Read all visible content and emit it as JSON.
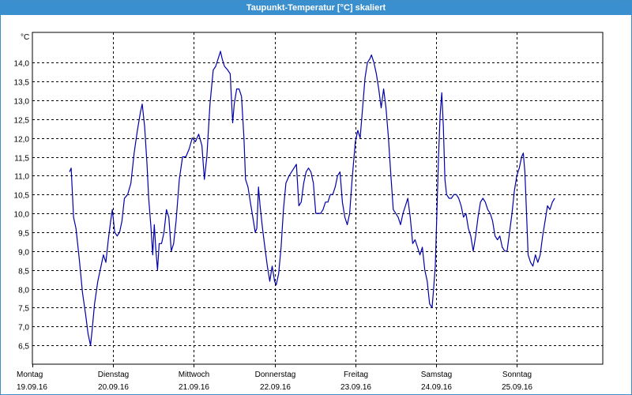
{
  "window": {
    "title": "Taupunkt-Temperatur [°C] skaliert"
  },
  "chart_data": {
    "type": "line",
    "title": "Taupunkt-Temperatur [°C] skaliert",
    "ylabel": "°C",
    "xlabel": "",
    "ylim": [
      6.0,
      14.8
    ],
    "xlim": [
      0,
      7.07
    ],
    "y_ticks": [
      "6,5",
      "7,0",
      "7,5",
      "8,0",
      "8,5",
      "9,0",
      "9,5",
      "10,0",
      "10,5",
      "11,0",
      "11,5",
      "12,0",
      "12,5",
      "13,0",
      "13,5",
      "14,0"
    ],
    "y_tick_values": [
      6.5,
      7.0,
      7.5,
      8.0,
      8.5,
      9.0,
      9.5,
      10.0,
      10.5,
      11.0,
      11.5,
      12.0,
      12.5,
      13.0,
      13.5,
      14.0
    ],
    "x_ticks": [
      {
        "day": "Montag",
        "date": "19.09.16",
        "x": 0
      },
      {
        "day": "Dienstag",
        "date": "20.09.16",
        "x": 1
      },
      {
        "day": "Mittwoch",
        "date": "21.09.16",
        "x": 2
      },
      {
        "day": "Donnerstag",
        "date": "22.09.16",
        "x": 3
      },
      {
        "day": "Freitag",
        "date": "23.09.16",
        "x": 4
      },
      {
        "day": "Samstag",
        "date": "24.09.16",
        "x": 5
      },
      {
        "day": "Sonntag",
        "date": "25.09.16",
        "x": 6
      }
    ],
    "grid": true,
    "colors": {
      "series": "#0000aa",
      "grid": "#000000",
      "title_bar": "#3a8fcf"
    },
    "series": [
      {
        "values": [
          [
            0.46,
            11.1
          ],
          [
            0.48,
            11.2
          ],
          [
            0.51,
            9.9
          ],
          [
            0.54,
            9.6
          ],
          [
            0.58,
            8.8
          ],
          [
            0.62,
            7.9
          ],
          [
            0.66,
            7.3
          ],
          [
            0.69,
            6.8
          ],
          [
            0.72,
            6.5
          ],
          [
            0.74,
            6.9
          ],
          [
            0.77,
            7.6
          ],
          [
            0.81,
            8.2
          ],
          [
            0.85,
            8.6
          ],
          [
            0.88,
            8.9
          ],
          [
            0.91,
            8.7
          ],
          [
            0.94,
            9.3
          ],
          [
            0.97,
            9.8
          ],
          [
            0.99,
            10.1
          ],
          [
            1.02,
            9.5
          ],
          [
            1.05,
            9.4
          ],
          [
            1.08,
            9.5
          ],
          [
            1.11,
            9.8
          ],
          [
            1.14,
            10.4
          ],
          [
            1.18,
            10.5
          ],
          [
            1.22,
            10.8
          ],
          [
            1.26,
            11.6
          ],
          [
            1.3,
            12.2
          ],
          [
            1.34,
            12.7
          ],
          [
            1.36,
            12.9
          ],
          [
            1.39,
            12.3
          ],
          [
            1.42,
            11.3
          ],
          [
            1.44,
            10.4
          ],
          [
            1.47,
            9.6
          ],
          [
            1.49,
            8.9
          ],
          [
            1.51,
            9.7
          ],
          [
            1.53,
            9.0
          ],
          [
            1.55,
            8.5
          ],
          [
            1.57,
            9.2
          ],
          [
            1.6,
            9.2
          ],
          [
            1.63,
            9.5
          ],
          [
            1.66,
            10.1
          ],
          [
            1.69,
            9.9
          ],
          [
            1.72,
            9.0
          ],
          [
            1.75,
            9.2
          ],
          [
            1.78,
            9.8
          ],
          [
            1.82,
            10.9
          ],
          [
            1.86,
            11.5
          ],
          [
            1.9,
            11.5
          ],
          [
            1.94,
            11.7
          ],
          [
            1.98,
            12.0
          ],
          [
            2.02,
            11.9
          ],
          [
            2.06,
            12.1
          ],
          [
            2.1,
            11.8
          ],
          [
            2.13,
            10.9
          ],
          [
            2.16,
            11.5
          ],
          [
            2.2,
            12.9
          ],
          [
            2.24,
            13.8
          ],
          [
            2.27,
            13.9
          ],
          [
            2.3,
            14.1
          ],
          [
            2.33,
            14.3
          ],
          [
            2.35,
            14.1
          ],
          [
            2.38,
            13.9
          ],
          [
            2.42,
            13.8
          ],
          [
            2.45,
            13.7
          ],
          [
            2.48,
            12.4
          ],
          [
            2.5,
            12.9
          ],
          [
            2.53,
            13.3
          ],
          [
            2.56,
            13.3
          ],
          [
            2.59,
            13.1
          ],
          [
            2.62,
            12.0
          ],
          [
            2.64,
            10.9
          ],
          [
            2.67,
            10.7
          ],
          [
            2.7,
            10.3
          ],
          [
            2.73,
            9.9
          ],
          [
            2.76,
            9.5
          ],
          [
            2.78,
            9.6
          ],
          [
            2.8,
            10.7
          ],
          [
            2.82,
            10.2
          ],
          [
            2.85,
            9.6
          ],
          [
            2.88,
            9.1
          ],
          [
            2.91,
            8.6
          ],
          [
            2.94,
            8.2
          ],
          [
            2.97,
            8.6
          ],
          [
            3.0,
            8.2
          ],
          [
            3.02,
            8.1
          ],
          [
            3.05,
            8.4
          ],
          [
            3.08,
            9.1
          ],
          [
            3.11,
            10.1
          ],
          [
            3.14,
            10.8
          ],
          [
            3.18,
            11.0
          ],
          [
            3.21,
            11.1
          ],
          [
            3.24,
            11.2
          ],
          [
            3.27,
            11.3
          ],
          [
            3.3,
            10.2
          ],
          [
            3.33,
            10.3
          ],
          [
            3.36,
            10.8
          ],
          [
            3.39,
            11.1
          ],
          [
            3.42,
            11.2
          ],
          [
            3.45,
            11.1
          ],
          [
            3.48,
            10.8
          ],
          [
            3.51,
            10.0
          ],
          [
            3.54,
            10.0
          ],
          [
            3.57,
            10.0
          ],
          [
            3.6,
            10.1
          ],
          [
            3.63,
            10.3
          ],
          [
            3.66,
            10.3
          ],
          [
            3.69,
            10.5
          ],
          [
            3.72,
            10.5
          ],
          [
            3.75,
            10.7
          ],
          [
            3.78,
            11.0
          ],
          [
            3.81,
            11.1
          ],
          [
            3.84,
            10.3
          ],
          [
            3.87,
            9.9
          ],
          [
            3.9,
            9.7
          ],
          [
            3.93,
            10.0
          ],
          [
            3.96,
            10.9
          ],
          [
            4.0,
            11.9
          ],
          [
            4.03,
            12.2
          ],
          [
            4.06,
            12.0
          ],
          [
            4.09,
            12.8
          ],
          [
            4.12,
            13.6
          ],
          [
            4.15,
            14.0
          ],
          [
            4.18,
            14.1
          ],
          [
            4.2,
            14.2
          ],
          [
            4.23,
            14.0
          ],
          [
            4.26,
            13.7
          ],
          [
            4.29,
            13.3
          ],
          [
            4.32,
            12.8
          ],
          [
            4.35,
            13.3
          ],
          [
            4.38,
            12.8
          ],
          [
            4.41,
            12.0
          ],
          [
            4.44,
            11.0
          ],
          [
            4.47,
            10.1
          ],
          [
            4.5,
            10.0
          ],
          [
            4.53,
            9.9
          ],
          [
            4.56,
            9.7
          ],
          [
            4.59,
            10.0
          ],
          [
            4.62,
            10.2
          ],
          [
            4.65,
            10.4
          ],
          [
            4.68,
            9.9
          ],
          [
            4.71,
            9.2
          ],
          [
            4.74,
            9.3
          ],
          [
            4.77,
            9.1
          ],
          [
            4.8,
            8.9
          ],
          [
            4.83,
            9.1
          ],
          [
            4.86,
            8.5
          ],
          [
            4.89,
            8.2
          ],
          [
            4.92,
            7.6
          ],
          [
            4.95,
            7.5
          ],
          [
            4.97,
            8.0
          ],
          [
            4.99,
            8.6
          ],
          [
            5.01,
            10.0
          ],
          [
            5.03,
            11.5
          ],
          [
            5.05,
            12.6
          ],
          [
            5.07,
            13.2
          ],
          [
            5.09,
            12.3
          ],
          [
            5.11,
            10.9
          ],
          [
            5.13,
            10.5
          ],
          [
            5.16,
            10.4
          ],
          [
            5.19,
            10.4
          ],
          [
            5.22,
            10.5
          ],
          [
            5.25,
            10.5
          ],
          [
            5.28,
            10.4
          ],
          [
            5.31,
            10.2
          ],
          [
            5.34,
            9.9
          ],
          [
            5.37,
            10.0
          ],
          [
            5.4,
            9.6
          ],
          [
            5.43,
            9.4
          ],
          [
            5.46,
            9.0
          ],
          [
            5.49,
            9.4
          ],
          [
            5.52,
            9.9
          ],
          [
            5.55,
            10.3
          ],
          [
            5.58,
            10.4
          ],
          [
            5.61,
            10.3
          ],
          [
            5.64,
            10.1
          ],
          [
            5.67,
            10.0
          ],
          [
            5.7,
            9.8
          ],
          [
            5.73,
            9.4
          ],
          [
            5.76,
            9.3
          ],
          [
            5.79,
            9.4
          ],
          [
            5.82,
            9.1
          ],
          [
            5.85,
            9.0
          ],
          [
            5.88,
            9.0
          ],
          [
            5.91,
            9.5
          ],
          [
            5.94,
            10.0
          ],
          [
            5.97,
            10.6
          ],
          [
            6.0,
            11.0
          ],
          [
            6.03,
            11.2
          ],
          [
            6.06,
            11.5
          ],
          [
            6.08,
            11.6
          ],
          [
            6.1,
            11.1
          ],
          [
            6.12,
            10.0
          ],
          [
            6.14,
            8.9
          ],
          [
            6.17,
            8.7
          ],
          [
            6.2,
            8.6
          ],
          [
            6.23,
            8.9
          ],
          [
            6.26,
            8.7
          ],
          [
            6.29,
            8.9
          ],
          [
            6.32,
            9.4
          ],
          [
            6.35,
            9.8
          ],
          [
            6.38,
            10.2
          ],
          [
            6.41,
            10.1
          ],
          [
            6.44,
            10.3
          ],
          [
            6.47,
            10.4
          ]
        ]
      }
    ]
  }
}
